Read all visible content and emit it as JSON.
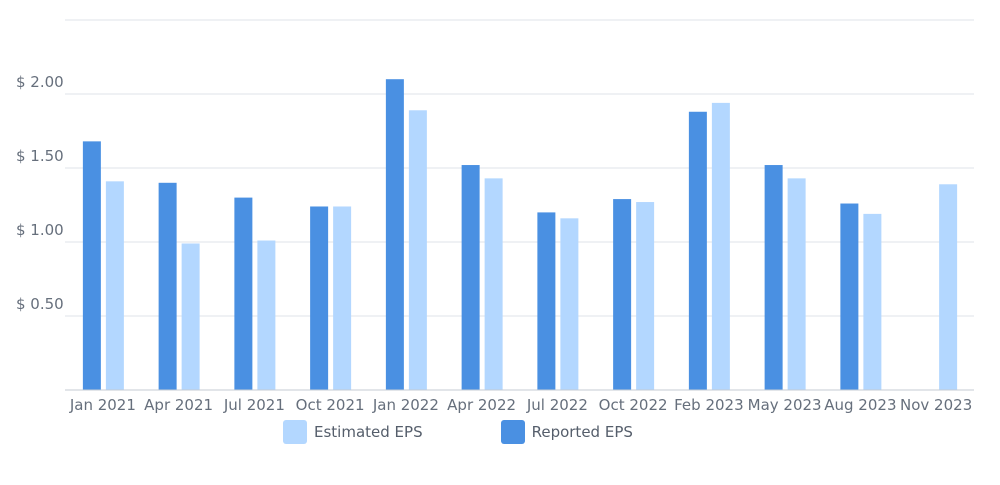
{
  "chart_data": {
    "type": "bar",
    "categories": [
      "Jan 2021",
      "Apr 2021",
      "Jul 2021",
      "Oct 2021",
      "Jan 2022",
      "Apr 2022",
      "Jul 2022",
      "Oct 2022",
      "Feb 2023",
      "May 2023",
      "Aug 2023",
      "Nov 2023"
    ],
    "series": [
      {
        "name": "Reported EPS",
        "color": "#4a90e2",
        "values": [
          1.68,
          1.4,
          1.3,
          1.24,
          2.1,
          1.52,
          1.2,
          1.29,
          1.88,
          1.52,
          1.26,
          null
        ]
      },
      {
        "name": "Estimated EPS",
        "color": "#b3d7ff",
        "values": [
          1.41,
          0.99,
          1.01,
          1.24,
          1.89,
          1.43,
          1.16,
          1.27,
          1.94,
          1.43,
          1.19,
          1.39
        ]
      }
    ],
    "y_ticks": [
      {
        "value": 0.5,
        "label": "$ 0.50"
      },
      {
        "value": 1.0,
        "label": "$ 1.00"
      },
      {
        "value": 1.5,
        "label": "$ 1.50"
      },
      {
        "value": 2.0,
        "label": "$ 2.00"
      }
    ],
    "ylim": [
      0,
      2.5
    ],
    "grid": true,
    "legend": {
      "position": "bottom",
      "items": [
        {
          "label": "Estimated EPS",
          "color": "#b3d7ff"
        },
        {
          "label": "Reported EPS",
          "color": "#4a90e2"
        }
      ]
    },
    "title": "",
    "xlabel": "",
    "ylabel": ""
  }
}
